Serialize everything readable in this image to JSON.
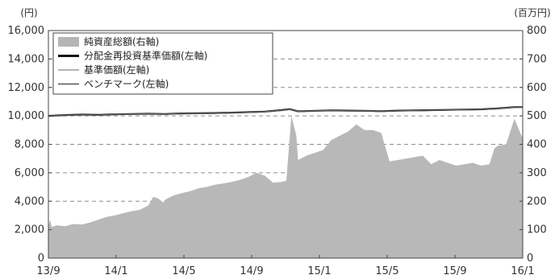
{
  "chart_data": {
    "type": "area",
    "left_axis": {
      "unit": "(円)",
      "ylim": [
        0,
        16000
      ],
      "ticks": [
        "0",
        "2,000",
        "4,000",
        "6,000",
        "8,000",
        "10,000",
        "12,000",
        "14,000",
        "16,000"
      ]
    },
    "right_axis": {
      "unit": "(百万円)",
      "ylim": [
        0,
        800
      ],
      "ticks": [
        "0",
        "100",
        "200",
        "300",
        "400",
        "500",
        "600",
        "700",
        "800"
      ]
    },
    "x_ticks": [
      "13/9",
      "14/1",
      "14/5",
      "14/9",
      "15/1",
      "15/5",
      "15/9",
      "16/1"
    ],
    "grid": "dashed horizontal",
    "legend": [
      {
        "label": "純資産総額(右軸)",
        "style": "area",
        "color": "#b5b5b5"
      },
      {
        "label": "分配金再投資基準価額(左軸)",
        "style": "line",
        "color": "#111111"
      },
      {
        "label": "基準価額(左軸)",
        "style": "line",
        "color": "#9a9a9a"
      },
      {
        "label": "ベンチマーク(左軸)",
        "style": "line",
        "color": "#555555"
      }
    ],
    "legend_position": "top-left",
    "series": [
      {
        "name": "純資産総額(右軸)",
        "axis": "right",
        "x": [
          0,
          0.1,
          0.2,
          0.5,
          1,
          1.5,
          2,
          2.5,
          3,
          3.5,
          4,
          4.5,
          5,
          5.5,
          6,
          6.3,
          6.6,
          6.9,
          7,
          7.5,
          8,
          8.5,
          9,
          9.5,
          10,
          10.5,
          11,
          11.5,
          12,
          12.5,
          13,
          13.5,
          14,
          14.3,
          14.6,
          14.9,
          15,
          15.5,
          16,
          16.5,
          17,
          17.5,
          18,
          18.5,
          19,
          19.5,
          20,
          20.5,
          21,
          21.5,
          22,
          22.5,
          23,
          23.5,
          24,
          24.5,
          25,
          25.5,
          26,
          26.5,
          26.8,
          27,
          27.5,
          28,
          28.5
        ],
        "values": [
          110,
          135,
          110,
          115,
          112,
          120,
          118,
          125,
          135,
          145,
          150,
          158,
          165,
          170,
          185,
          215,
          210,
          195,
          205,
          220,
          228,
          235,
          245,
          250,
          258,
          262,
          268,
          275,
          285,
          300,
          290,
          265,
          268,
          272,
          500,
          430,
          345,
          360,
          370,
          380,
          415,
          430,
          445,
          470,
          450,
          450,
          440,
          340,
          345,
          350,
          355,
          360,
          330,
          345,
          335,
          325,
          330,
          335,
          325,
          330,
          385,
          395,
          400,
          490,
          420
        ]
      },
      {
        "name": "分配金再投資基準価額(左軸)",
        "axis": "left",
        "x": [
          0,
          1,
          2,
          3,
          4,
          5,
          6,
          7,
          8,
          9,
          10,
          11,
          12,
          13,
          14,
          14.5,
          15,
          16,
          17,
          18,
          19,
          20,
          21,
          22,
          23,
          24,
          25,
          26,
          27,
          28,
          28.5
        ],
        "values": [
          10000,
          10060,
          10090,
          10070,
          10110,
          10130,
          10150,
          10130,
          10170,
          10180,
          10200,
          10230,
          10260,
          10300,
          10400,
          10470,
          10320,
          10360,
          10380,
          10370,
          10360,
          10330,
          10370,
          10380,
          10400,
          10420,
          10440,
          10460,
          10520,
          10620,
          10620
        ]
      },
      {
        "name": "基準価額(左軸)",
        "axis": "left",
        "x": [
          0,
          1,
          2,
          3,
          4,
          5,
          6,
          7,
          8,
          9,
          10,
          11,
          12,
          13,
          14,
          14.5,
          15,
          16,
          17,
          18,
          19,
          20,
          21,
          22,
          23,
          24,
          25,
          26,
          27,
          28,
          28.5
        ],
        "values": [
          10000,
          10050,
          10080,
          10060,
          10100,
          10120,
          10140,
          10120,
          10160,
          10170,
          10190,
          10220,
          10250,
          10290,
          10390,
          10460,
          10310,
          10350,
          10370,
          10360,
          10350,
          10320,
          10360,
          10370,
          10390,
          10410,
          10430,
          10450,
          10510,
          10610,
          10610
        ]
      },
      {
        "name": "ベンチマーク(左軸)",
        "axis": "left",
        "x": [
          0,
          1,
          2,
          3,
          4,
          5,
          6,
          7,
          8,
          9,
          10,
          11,
          12,
          13,
          14,
          14.5,
          15,
          16,
          17,
          18,
          19,
          20,
          21,
          22,
          23,
          24,
          25,
          26,
          27,
          28,
          28.5
        ],
        "values": [
          10000,
          10040,
          10070,
          10050,
          10090,
          10110,
          10130,
          10110,
          10150,
          10160,
          10180,
          10210,
          10240,
          10280,
          10380,
          10450,
          10300,
          10340,
          10360,
          10350,
          10340,
          10310,
          10350,
          10360,
          10380,
          10400,
          10420,
          10440,
          10500,
          10600,
          10600
        ]
      }
    ]
  }
}
